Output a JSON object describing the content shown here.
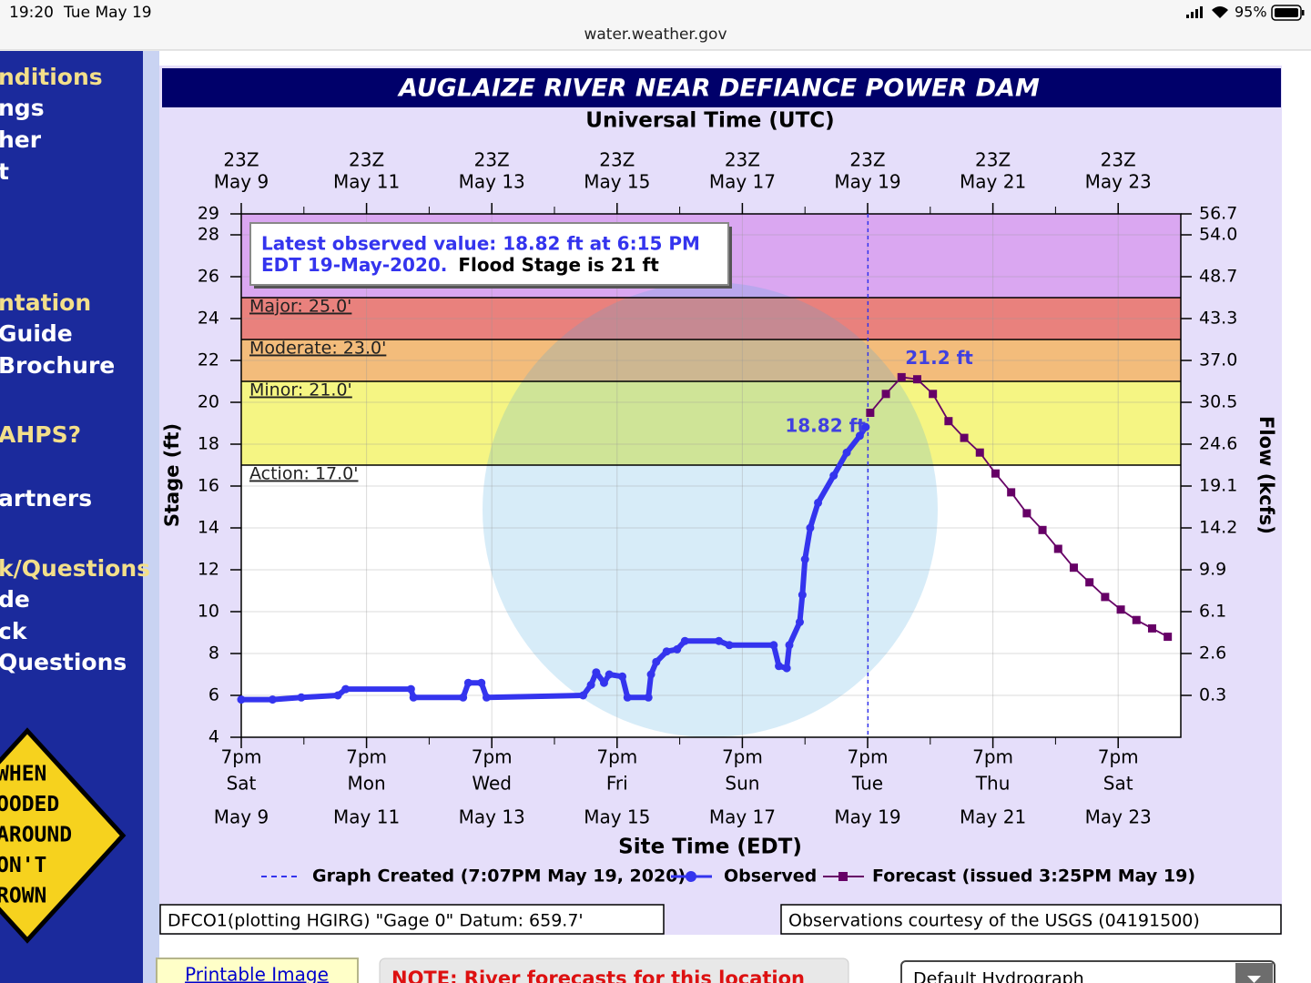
{
  "status_bar": {
    "time": "19:20",
    "date": "Tue May 19",
    "battery": "95%",
    "url": "water.weather.gov"
  },
  "sidebar": {
    "links": [
      {
        "text": "nditions",
        "highlight": true
      },
      {
        "text": "ngs",
        "highlight": false
      },
      {
        "text": "her",
        "highlight": false
      },
      {
        "text": "t",
        "highlight": false
      },
      {
        "text": "ntation",
        "highlight": true
      },
      {
        "text": "Guide",
        "highlight": false
      },
      {
        "text": "Brochure",
        "highlight": false
      },
      {
        "text": "AHPS?",
        "highlight": true
      },
      {
        "text": "artners",
        "highlight": false
      },
      {
        "text": "k/Questions",
        "highlight": true
      },
      {
        "text": "de",
        "highlight": false
      },
      {
        "text": "ck",
        "highlight": false
      },
      {
        "text": "Questions",
        "highlight": false
      }
    ],
    "sign": [
      "WHEN",
      "OODED",
      "AROUND",
      "ON'T",
      "ROWN"
    ]
  },
  "chart_data": {
    "type": "line",
    "title": "AUGLAIZE RIVER NEAR DEFIANCE POWER DAM",
    "top_axis_label": "Universal Time (UTC)",
    "xlabel": "Site Time (EDT)",
    "ylabel": "Stage (ft)",
    "y2label": "Flow (kcfs)",
    "xlim": [
      "May 9 19:00",
      "May 24 19:00"
    ],
    "xticks": [
      {
        "value": "May 9 19:00",
        "label": [
          "7pm",
          "Sat",
          "May 9"
        ]
      },
      {
        "value": "May 11 19:00",
        "label": [
          "7pm",
          "Mon",
          "May 11"
        ]
      },
      {
        "value": "May 13 19:00",
        "label": [
          "7pm",
          "Wed",
          "May 13"
        ]
      },
      {
        "value": "May 15 19:00",
        "label": [
          "7pm",
          "Fri",
          "May 15"
        ]
      },
      {
        "value": "May 17 19:00",
        "label": [
          "7pm",
          "Sun",
          "May 17"
        ]
      },
      {
        "value": "May 19 19:00",
        "label": [
          "7pm",
          "Tue",
          "May 19"
        ]
      },
      {
        "value": "May 21 19:00",
        "label": [
          "7pm",
          "Thu",
          "May 21"
        ]
      },
      {
        "value": "May 23 19:00",
        "label": [
          "7pm",
          "Sat",
          "May 23"
        ]
      }
    ],
    "top_xticks": [
      {
        "value": "May 9 19:00",
        "label": [
          "23Z",
          "May  9"
        ]
      },
      {
        "value": "May 11 19:00",
        "label": [
          "23Z",
          "May 11"
        ]
      },
      {
        "value": "May 13 19:00",
        "label": [
          "23Z",
          "May 13"
        ]
      },
      {
        "value": "May 15 19:00",
        "label": [
          "23Z",
          "May 15"
        ]
      },
      {
        "value": "May 17 19:00",
        "label": [
          "23Z",
          "May 17"
        ]
      },
      {
        "value": "May 19 19:00",
        "label": [
          "23Z",
          "May 19"
        ]
      },
      {
        "value": "May 21 19:00",
        "label": [
          "23Z",
          "May 21"
        ]
      },
      {
        "value": "May 23 19:00",
        "label": [
          "23Z",
          "May 23"
        ]
      }
    ],
    "ylim": [
      4,
      29
    ],
    "yticks": [
      4,
      6,
      8,
      10,
      12,
      14,
      16,
      18,
      20,
      22,
      24,
      26,
      28,
      29
    ],
    "y2ticks": [
      {
        "stage": 29,
        "value": 56.7
      },
      {
        "stage": 28,
        "value": 54,
        "label": "54.0"
      },
      {
        "stage": 26,
        "value": 48.7
      },
      {
        "stage": 24,
        "value": 43.3
      },
      {
        "stage": 22,
        "value": 37,
        "label": "37.0"
      },
      {
        "stage": 20,
        "value": 30.5
      },
      {
        "stage": 18,
        "value": 24.6
      },
      {
        "stage": 16,
        "value": 19.1
      },
      {
        "stage": 14,
        "value": 14.2
      },
      {
        "stage": 12,
        "value": 9.9
      },
      {
        "stage": 10,
        "value": 6.1
      },
      {
        "stage": 8,
        "value": 2.6
      },
      {
        "stage": 6,
        "value": 0.3
      }
    ],
    "grid": true,
    "flood_categories": [
      {
        "value": 25,
        "label": "Major: 25.0'",
        "color": "#d8a2f0"
      },
      {
        "value": 23,
        "label": "Moderate: 23.0'",
        "color": "#e87a76"
      },
      {
        "value": 21,
        "label": "Minor: 21.0'",
        "color": "#f2b874"
      },
      {
        "value": 17,
        "label": "Action: 17.0'",
        "color": "#f4f47c"
      }
    ],
    "series": [
      {
        "name": "Observed",
        "color": "#3434ee",
        "marker": "circle",
        "x": [
          "May 9 19:00",
          "May 10 07:00",
          "May 10 18:00",
          "May 11 08:00",
          "May 11 11:00",
          "May 12 12:00",
          "May 12 13:00",
          "May 13 08:00",
          "May 13 10:00",
          "May 13 15:00",
          "May 13 17:00",
          "May 15 06:00",
          "May 15 09:00",
          "May 15 11:00",
          "May 15 14:00",
          "May 15 16:00",
          "May 15 21:00",
          "May 15 23:00",
          "May 16 07:00",
          "May 16 08:00",
          "May 16 10:00",
          "May 16 14:00",
          "May 16 18:00",
          "May 16 21:00",
          "May 17 10:00",
          "May 17 14:00",
          "May 18 07:00",
          "May 18 09:00",
          "May 18 12:00",
          "May 18 13:00",
          "May 18 17:00",
          "May 18 18:00",
          "May 18 19:00",
          "May 18 21:00",
          "May 19 00:00",
          "May 19 06:00",
          "May 19 11:00",
          "May 19 16:00",
          "May 19 18:15"
        ],
        "values": [
          5.8,
          5.8,
          5.9,
          6.0,
          6.3,
          6.3,
          5.9,
          5.9,
          6.6,
          6.6,
          5.9,
          6.0,
          6.5,
          7.1,
          6.6,
          7.0,
          6.9,
          5.9,
          5.9,
          7.0,
          7.6,
          8.1,
          8.2,
          8.6,
          8.6,
          8.4,
          8.4,
          7.4,
          7.3,
          8.4,
          9.5,
          10.8,
          12.5,
          14.0,
          15.2,
          16.5,
          17.6,
          18.4,
          18.82
        ]
      },
      {
        "name": "Forecast (issued 3:25PM May 19)",
        "color": "#660066",
        "marker": "square",
        "x": [
          "May 19 20:00",
          "May 20 02:00",
          "May 20 08:00",
          "May 20 14:00",
          "May 20 20:00",
          "May 21 02:00",
          "May 21 08:00",
          "May 21 14:00",
          "May 21 20:00",
          "May 22 02:00",
          "May 22 08:00",
          "May 22 14:00",
          "May 22 20:00",
          "May 23 02:00",
          "May 23 08:00",
          "May 23 14:00",
          "May 23 20:00",
          "May 24 02:00",
          "May 24 08:00",
          "May 24 14:00"
        ],
        "values": [
          19.5,
          20.4,
          21.2,
          21.1,
          20.4,
          19.1,
          18.3,
          17.6,
          16.6,
          15.7,
          14.7,
          13.9,
          13.0,
          12.1,
          11.4,
          10.7,
          10.1,
          9.6,
          9.2,
          8.8
        ]
      }
    ],
    "graph_created": {
      "name": "Graph Created (7:07PM May 19, 2020)",
      "x": "May 19 19:07",
      "color": "#3434ee"
    },
    "annotations": [
      {
        "text": "18.82 ft",
        "x": "May 19 18:15",
        "y": 18.82
      },
      {
        "text": "21.2 ft",
        "x": "May 20 08:00",
        "y": 21.2
      }
    ],
    "info_box": {
      "line1": "Latest observed value: 18.82 ft at 6:15 PM",
      "line2": "EDT 19-May-2020.",
      "flood_stage": "Flood Stage is 21 ft"
    },
    "footer_left": "DFCO1(plotting HGIRG) \"Gage 0\" Datum: 659.7'",
    "footer_right": "Observations courtesy of the USGS (04191500)"
  },
  "bottom": {
    "printable": "Printable Image",
    "note": "NOTE: River forecasts for this location",
    "select": "Default Hydrograph"
  }
}
